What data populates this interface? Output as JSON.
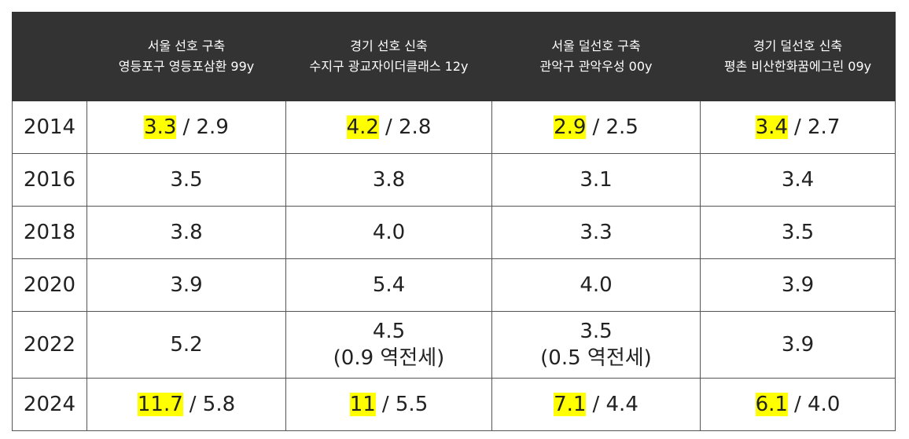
{
  "table": {
    "columns": [
      {
        "line1": "서울 선호 구축",
        "line2": "영등포구 영등포삼환 99y"
      },
      {
        "line1": "경기 선호 신축",
        "line2": "수지구 광교자이더클래스 12y"
      },
      {
        "line1": "서울 덜선호 구축",
        "line2": "관악구 관악우성 00y"
      },
      {
        "line1": "경기 덜선호 신축",
        "line2": "평촌 비산한화꿈에그린 09y"
      }
    ],
    "rows": [
      {
        "year": "2014",
        "cells": [
          {
            "highlight": "3.3",
            "text": "/ 2.9"
          },
          {
            "highlight": "4.2",
            "text": "/ 2.8"
          },
          {
            "highlight": "2.9",
            "text": "/ 2.5"
          },
          {
            "highlight": "3.4",
            "text": "/ 2.7"
          }
        ]
      },
      {
        "year": "2016",
        "cells": [
          {
            "text": "3.5"
          },
          {
            "text": "3.8"
          },
          {
            "text": "3.1"
          },
          {
            "text": "3.4"
          }
        ]
      },
      {
        "year": "2018",
        "cells": [
          {
            "text": "3.8"
          },
          {
            "text": "4.0"
          },
          {
            "text": "3.3"
          },
          {
            "text": "3.5"
          }
        ]
      },
      {
        "year": "2020",
        "cells": [
          {
            "text": "3.9"
          },
          {
            "text": "5.4"
          },
          {
            "text": "4.0"
          },
          {
            "text": "3.9"
          }
        ]
      },
      {
        "year": "2022",
        "cells": [
          {
            "text": "5.2"
          },
          {
            "text": "4.5",
            "note": "(0.9 역전세)"
          },
          {
            "text": "3.5",
            "note": "(0.5 역전세)"
          },
          {
            "text": "3.9"
          }
        ]
      },
      {
        "year": "2024",
        "cells": [
          {
            "highlight": "11.7",
            "text": "/ 5.8"
          },
          {
            "highlight": "11",
            "text": "/ 5.5"
          },
          {
            "highlight": "7.1",
            "text": "/ 4.4"
          },
          {
            "highlight": "6.1",
            "text": "/ 4.0"
          }
        ]
      }
    ]
  }
}
